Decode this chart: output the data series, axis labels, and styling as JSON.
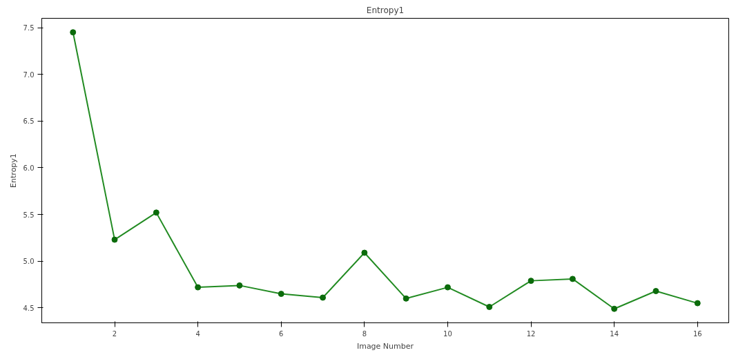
{
  "chart_data": {
    "type": "line",
    "title": "Entropy1",
    "xlabel": "Image Number",
    "ylabel": "Entropy1",
    "x": [
      1,
      2,
      3,
      4,
      5,
      6,
      7,
      8,
      9,
      10,
      11,
      12,
      13,
      14,
      15,
      16
    ],
    "series": [
      {
        "color": "#228b22",
        "values": [
          7.45,
          5.23,
          5.52,
          4.72,
          4.74,
          4.65,
          4.61,
          5.09,
          4.6,
          4.72,
          4.51,
          4.79,
          4.81,
          4.49,
          4.68,
          4.55
        ]
      }
    ],
    "xlim": [
      0.25,
      16.75
    ],
    "ylim": [
      4.34,
      7.6
    ],
    "xticks": [
      2,
      4,
      6,
      8,
      10,
      12,
      14,
      16
    ],
    "yticks": [
      4.5,
      {
        "value": 5,
        "label": "5.0"
      },
      5.5,
      {
        "value": 6,
        "label": "6.0"
      },
      6.5,
      {
        "value": 7,
        "label": "7.0"
      },
      7.5
    ],
    "marker": "circle",
    "line_style": "solid",
    "grid": false
  }
}
